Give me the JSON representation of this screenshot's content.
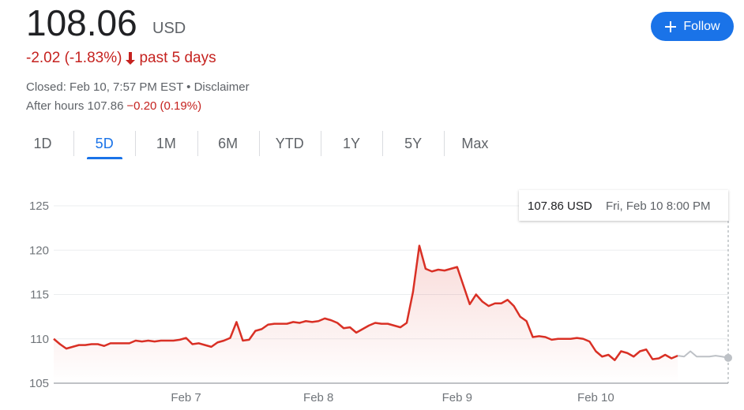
{
  "header": {
    "price": "108.06",
    "currency": "USD",
    "change": "-2.02 (-1.83%)",
    "period": "past 5 days",
    "closed": "Closed: Feb 10, 7:57 PM EST • Disclaimer",
    "after_hours": "After hours 107.86",
    "after_hours_change": "−0.20 (0.19%)"
  },
  "follow": "Follow",
  "tabs": [
    "1D",
    "5D",
    "1M",
    "6M",
    "YTD",
    "1Y",
    "5Y",
    "Max"
  ],
  "active_tab": 1,
  "tooltip": {
    "value": "107.86 USD",
    "time": "Fri, Feb 10 8:00 PM"
  },
  "chart_data": {
    "type": "line",
    "categories": [
      null,
      null,
      null,
      null,
      null,
      null,
      null,
      null,
      null,
      null,
      null,
      null,
      null,
      null,
      null,
      null,
      null,
      null,
      null,
      null,
      null,
      "Feb 7",
      null,
      null,
      null,
      null,
      null,
      null,
      null,
      null,
      null,
      null,
      null,
      null,
      null,
      null,
      null,
      null,
      null,
      null,
      null,
      null,
      "Feb 8",
      null,
      null,
      null,
      null,
      null,
      null,
      null,
      null,
      null,
      null,
      null,
      null,
      null,
      null,
      null,
      null,
      null,
      null,
      null,
      null,
      null,
      "Feb 9",
      null,
      null,
      null,
      null,
      null,
      null,
      null,
      null,
      null,
      null,
      null,
      null,
      null,
      null,
      null,
      null,
      null,
      null,
      null,
      null,
      null,
      "Feb 10",
      null,
      null,
      null,
      null,
      null,
      null,
      null,
      null,
      null,
      null,
      null,
      null,
      null,
      null,
      null,
      null,
      null,
      null,
      null,
      null,
      null
    ],
    "series": [
      {
        "color": "#d93025",
        "values": [
          110.0,
          109.4,
          108.9,
          109.1,
          109.3,
          109.3,
          109.4,
          109.4,
          109.2,
          109.5,
          109.5,
          109.5,
          109.5,
          109.8,
          109.7,
          109.8,
          109.7,
          109.8,
          109.8,
          109.8,
          109.9,
          110.1,
          109.4,
          109.5,
          109.3,
          109.1,
          109.6,
          109.8,
          110.1,
          111.9,
          109.8,
          109.9,
          110.9,
          111.1,
          111.6,
          111.7,
          111.7,
          111.7,
          111.9,
          111.8,
          112.0,
          111.9,
          112.0,
          112.3,
          112.1,
          111.8,
          111.2,
          111.3,
          110.7,
          111.1,
          111.5,
          111.8,
          111.7,
          111.7,
          111.5,
          111.3,
          111.8,
          115.3,
          120.5,
          117.9,
          117.6,
          117.8,
          117.7,
          117.9,
          118.1,
          116.0,
          113.9,
          115.0,
          114.2,
          113.7,
          114.0,
          114.0,
          114.4,
          113.7,
          112.5,
          112.0,
          110.2,
          110.3,
          110.2,
          109.9,
          110.0,
          110.0,
          110.0,
          110.1,
          110.0,
          109.7,
          108.6,
          108.0,
          108.2,
          107.6,
          108.6,
          108.4,
          108.0,
          108.6,
          108.8,
          107.7,
          107.8,
          108.2,
          107.8,
          108.1,
          null,
          null,
          null,
          null,
          null,
          null,
          null,
          null
        ]
      },
      {
        "color": "#bdc1c6",
        "values": [
          null,
          null,
          null,
          null,
          null,
          null,
          null,
          null,
          null,
          null,
          null,
          null,
          null,
          null,
          null,
          null,
          null,
          null,
          null,
          null,
          null,
          null,
          null,
          null,
          null,
          null,
          null,
          null,
          null,
          null,
          null,
          null,
          null,
          null,
          null,
          null,
          null,
          null,
          null,
          null,
          null,
          null,
          null,
          null,
          null,
          null,
          null,
          null,
          null,
          null,
          null,
          null,
          null,
          null,
          null,
          null,
          null,
          null,
          null,
          null,
          null,
          null,
          null,
          null,
          null,
          null,
          null,
          null,
          null,
          null,
          null,
          null,
          null,
          null,
          null,
          null,
          null,
          null,
          null,
          null,
          null,
          null,
          null,
          null,
          null,
          null,
          null,
          null,
          null,
          null,
          null,
          null,
          null,
          null,
          null,
          null,
          null,
          null,
          null,
          108.1,
          108.0,
          108.6,
          108.0,
          108.0,
          108.0,
          108.1,
          108.0,
          107.86
        ]
      }
    ],
    "ylim": [
      105,
      125
    ],
    "yticks": [
      105,
      110,
      115,
      120,
      125
    ],
    "grid": true
  }
}
